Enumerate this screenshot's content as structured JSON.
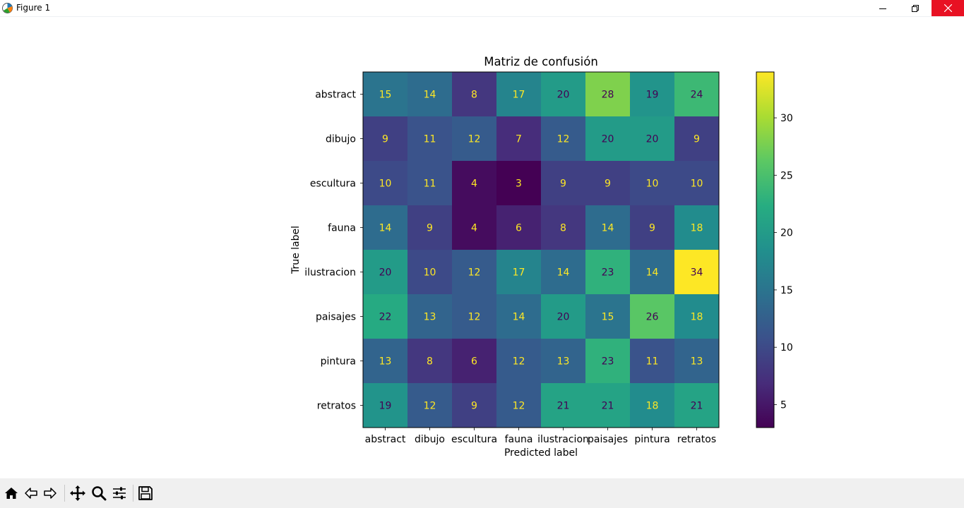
{
  "window": {
    "title": "Figure 1",
    "controls": [
      "minimize-icon",
      "restore-icon",
      "close-icon"
    ]
  },
  "toolbar": {
    "buttons": [
      "home-icon",
      "back-icon",
      "forward-icon",
      "pan-icon",
      "zoom-icon",
      "configure-subplots-icon",
      "save-icon"
    ]
  },
  "chart_data": {
    "type": "heatmap",
    "title": "Matriz de confusión",
    "xlabel": "Predicted label",
    "ylabel": "True label",
    "x_categories": [
      "abstract",
      "dibujo",
      "escultura",
      "fauna",
      "ilustracion",
      "paisajes",
      "pintura",
      "retratos"
    ],
    "y_categories": [
      "abstract",
      "dibujo",
      "escultura",
      "fauna",
      "ilustracion",
      "paisajes",
      "pintura",
      "retratos"
    ],
    "values": [
      [
        15,
        14,
        8,
        17,
        20,
        28,
        19,
        24
      ],
      [
        9,
        11,
        12,
        7,
        12,
        20,
        20,
        9
      ],
      [
        10,
        11,
        4,
        3,
        9,
        9,
        10,
        10
      ],
      [
        14,
        9,
        4,
        6,
        8,
        14,
        9,
        18
      ],
      [
        20,
        10,
        12,
        17,
        14,
        23,
        14,
        34
      ],
      [
        22,
        13,
        12,
        14,
        20,
        15,
        26,
        18
      ],
      [
        13,
        8,
        6,
        12,
        13,
        23,
        11,
        13
      ],
      [
        19,
        12,
        9,
        12,
        21,
        21,
        18,
        21
      ]
    ],
    "colormap": "viridis",
    "vmin": 3,
    "vmax": 34,
    "colorbar_ticks": [
      5,
      10,
      15,
      20,
      25,
      30
    ],
    "text_color_light": "#fde725",
    "text_color_dark": "#440154"
  }
}
